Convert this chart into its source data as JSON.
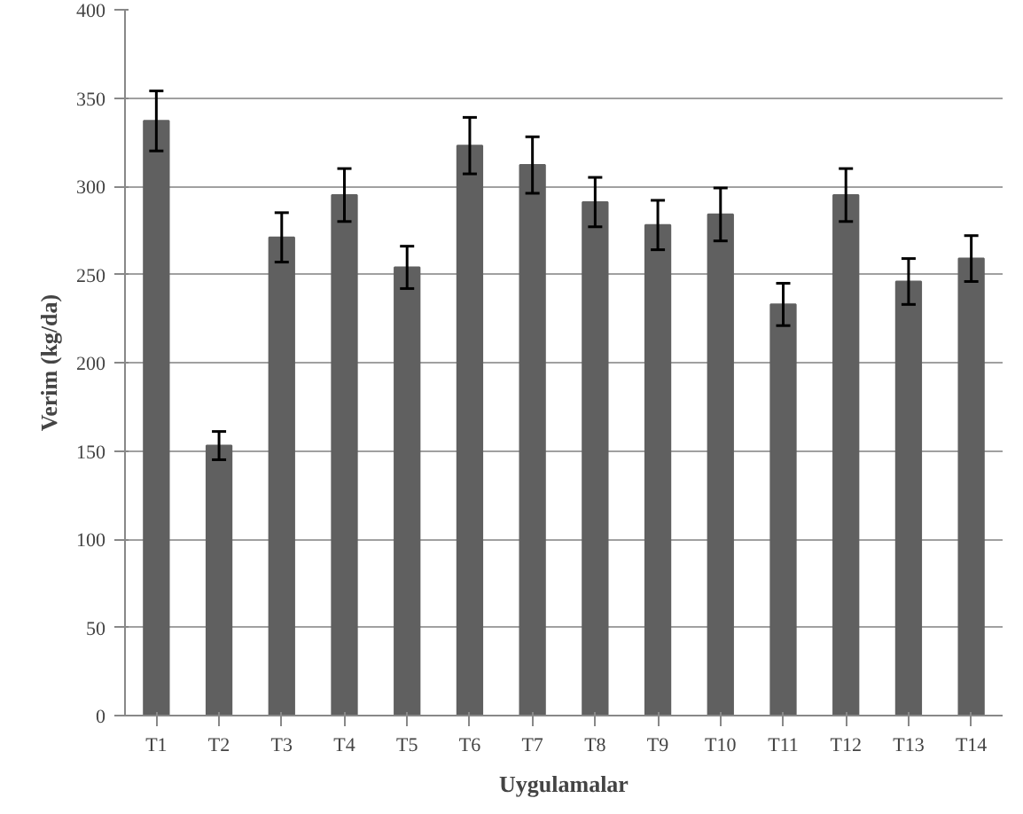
{
  "chart_data": {
    "type": "bar",
    "xlabel": "Uygulamalar",
    "ylabel": "Verim (kg/da)",
    "categories": [
      "T1",
      "T2",
      "T3",
      "T4",
      "T5",
      "T6",
      "T7",
      "T8",
      "T9",
      "T10",
      "T11",
      "T12",
      "T13",
      "T14"
    ],
    "values": [
      337,
      153,
      271,
      295,
      254,
      323,
      312,
      291,
      278,
      284,
      233,
      295,
      246,
      259
    ],
    "errors": [
      17,
      8,
      14,
      15,
      12,
      16,
      16,
      14,
      14,
      15,
      12,
      15,
      13,
      13
    ],
    "color": "#606060",
    "ylim": [
      0,
      400
    ],
    "yticks": [
      0,
      50,
      100,
      150,
      200,
      250,
      300,
      350,
      400
    ],
    "grid": "y"
  }
}
